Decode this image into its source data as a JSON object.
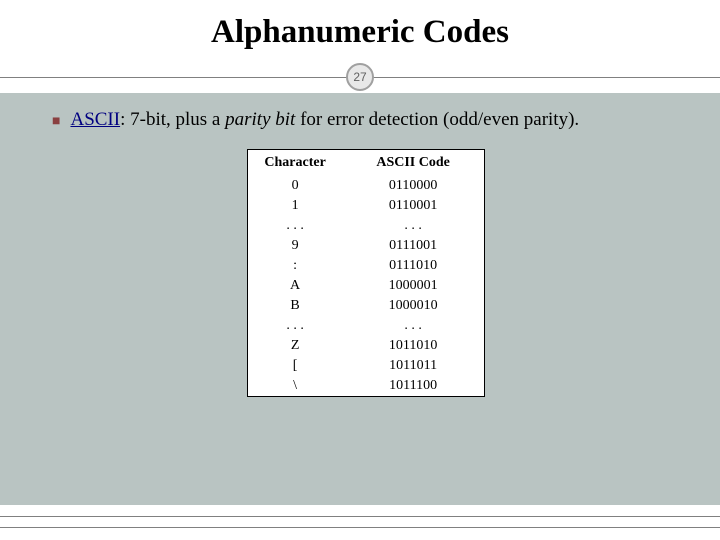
{
  "title": "Alphanumeric Codes",
  "page_number": "27",
  "bullet": {
    "link_text": "ASCII",
    "sep": ": ",
    "part1": "7-bit, plus a ",
    "italic": "parity bit",
    "part2": " for error detection (odd/even parity)."
  },
  "table": {
    "header_left": "Character",
    "header_right": "ASCII Code",
    "rows": [
      {
        "char": "0",
        "code": "0110000"
      },
      {
        "char": "1",
        "code": "0110001"
      },
      {
        "char": ". . .",
        "code": ". . ."
      },
      {
        "char": "9",
        "code": "0111001"
      },
      {
        "char": ":",
        "code": "0111010"
      },
      {
        "char": "A",
        "code": "1000001"
      },
      {
        "char": "B",
        "code": "1000010"
      },
      {
        "char": ". . .",
        "code": ". . ."
      },
      {
        "char": "Z",
        "code": "1011010"
      },
      {
        "char": "[",
        "code": "1011011"
      },
      {
        "char": "\\",
        "code": "1011100"
      }
    ]
  },
  "colors": {
    "content_bg": "#b9c4c2",
    "bullet_color": "#8a4040",
    "link_color": "#000080"
  }
}
